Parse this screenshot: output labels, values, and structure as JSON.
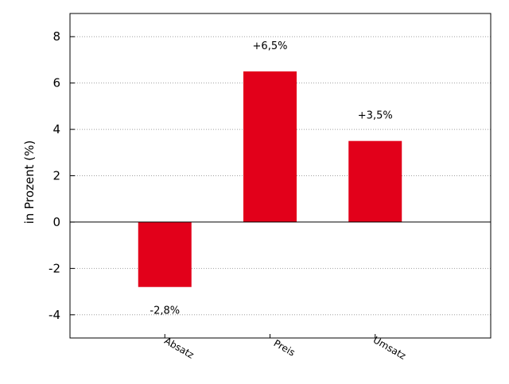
{
  "chart_data": {
    "type": "bar",
    "categories": [
      "Absatz",
      "Preis",
      "Umsatz"
    ],
    "values": [
      -2.8,
      6.5,
      3.5
    ],
    "value_labels": [
      "-2,8%",
      "+6,5%",
      "+3,5%"
    ],
    "ylabel": "in Prozent (%)",
    "ylim": [
      -5,
      9
    ],
    "yticks": [
      -4,
      -2,
      0,
      2,
      4,
      6,
      8
    ],
    "ytick_labels": [
      "-4",
      "-2",
      "0",
      "2",
      "4",
      "6",
      "8"
    ],
    "grid": "horizontal dotted",
    "bar_color": "#e2001a",
    "legend": "none"
  }
}
